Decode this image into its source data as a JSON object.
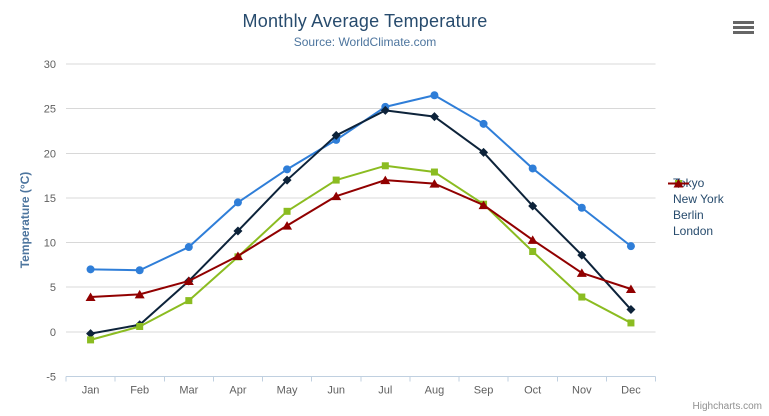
{
  "toolbar": {
    "menu_icon": "hamburger-menu-icon"
  },
  "credits": {
    "label": "Highcharts.com"
  },
  "chart_data": {
    "type": "line",
    "title": "Monthly Average Temperature",
    "subtitle": "Source: WorldClimate.com",
    "xlabel": "",
    "ylabel": "Temperature (°C)",
    "categories": [
      "Jan",
      "Feb",
      "Mar",
      "Apr",
      "May",
      "Jun",
      "Jul",
      "Aug",
      "Sep",
      "Oct",
      "Nov",
      "Dec"
    ],
    "ylim": [
      -5,
      30
    ],
    "ytick_interval": 5,
    "grid": true,
    "legend_position": "right",
    "style": {
      "grid_color": "#d8d8d8",
      "axis_line_color": "#c0d0e0",
      "label_color": "#606060",
      "title_color": "#274b6d",
      "subtitle_color": "#4d759e",
      "legend_text_color": "#274b6d"
    },
    "series": [
      {
        "name": "Tokyo",
        "color": "#2f7ed8",
        "marker": "circle",
        "values": [
          7.0,
          6.9,
          9.5,
          14.5,
          18.2,
          21.5,
          25.2,
          26.5,
          23.3,
          18.3,
          13.9,
          9.6
        ]
      },
      {
        "name": "New York",
        "color": "#0d233a",
        "marker": "diamond",
        "values": [
          -0.2,
          0.8,
          5.7,
          11.3,
          17.0,
          22.0,
          24.8,
          24.1,
          20.1,
          14.1,
          8.6,
          2.5
        ]
      },
      {
        "name": "Berlin",
        "color": "#8bbc21",
        "marker": "square",
        "values": [
          -0.9,
          0.6,
          3.5,
          8.4,
          13.5,
          17.0,
          18.6,
          17.9,
          14.3,
          9.0,
          3.9,
          1.0
        ]
      },
      {
        "name": "London",
        "color": "#910000",
        "marker": "triangle",
        "values": [
          3.9,
          4.2,
          5.7,
          8.5,
          11.9,
          15.2,
          17.0,
          16.6,
          14.2,
          10.3,
          6.6,
          4.8
        ]
      }
    ]
  }
}
